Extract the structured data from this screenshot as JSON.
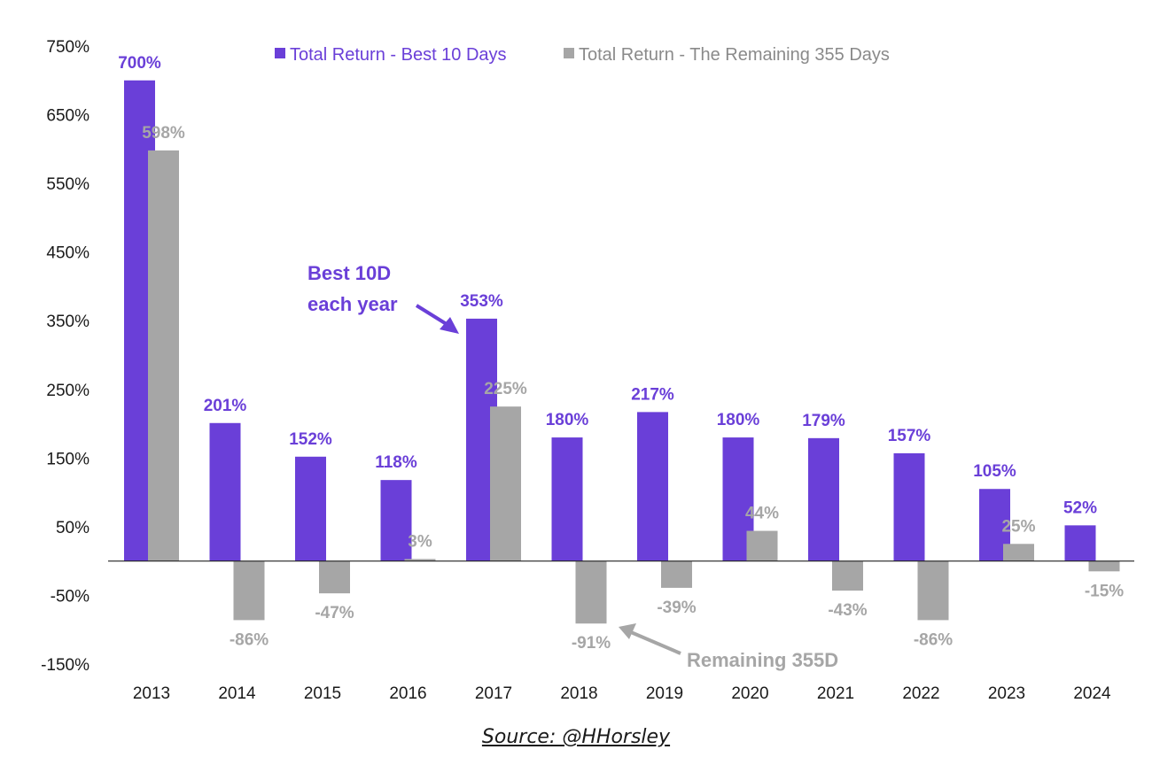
{
  "chart_data": {
    "type": "bar",
    "categories": [
      "2013",
      "2014",
      "2015",
      "2016",
      "2017",
      "2018",
      "2019",
      "2020",
      "2021",
      "2022",
      "2023",
      "2024"
    ],
    "series": [
      {
        "name": "Total Return - Best 10 Days",
        "color": "#6a3fd8",
        "label_color": "#6a3fd8",
        "values": [
          700,
          201,
          152,
          118,
          353,
          180,
          217,
          180,
          179,
          157,
          105,
          52
        ],
        "labels": [
          "700%",
          "201%",
          "152%",
          "118%",
          "353%",
          "180%",
          "217%",
          "180%",
          "179%",
          "157%",
          "105%",
          "52%"
        ]
      },
      {
        "name": "Total Return - The Remaining 355 Days",
        "color": "#a6a6a6",
        "label_color": "#a6a6a6",
        "values": [
          598,
          -86,
          -47,
          3,
          225,
          -91,
          -39,
          44,
          -43,
          -86,
          25,
          -15
        ],
        "labels": [
          "598%",
          "-86%",
          "-47%",
          "3%",
          "225%",
          "-91%",
          "-39%",
          "44%",
          "-43%",
          "-86%",
          "25%",
          "-15%"
        ]
      }
    ],
    "yticks": [
      750,
      650,
      550,
      450,
      350,
      250,
      150,
      50,
      -50,
      -150
    ],
    "ytick_labels": [
      "750%",
      "650%",
      "550%",
      "450%",
      "350%",
      "250%",
      "150%",
      "50%",
      "-50%",
      "-150%"
    ],
    "ylim": [
      -150,
      750
    ],
    "grid": false,
    "legend_position": "top",
    "annotations": [
      {
        "text_lines": [
          "Best 10D",
          "each year"
        ],
        "color": "#6a3fd8",
        "points_to": "2017"
      },
      {
        "text_lines": [
          "Remaining 355D"
        ],
        "color": "#a6a6a6",
        "points_to": "2018"
      }
    ]
  },
  "source_text": "Source: @HHorsley"
}
